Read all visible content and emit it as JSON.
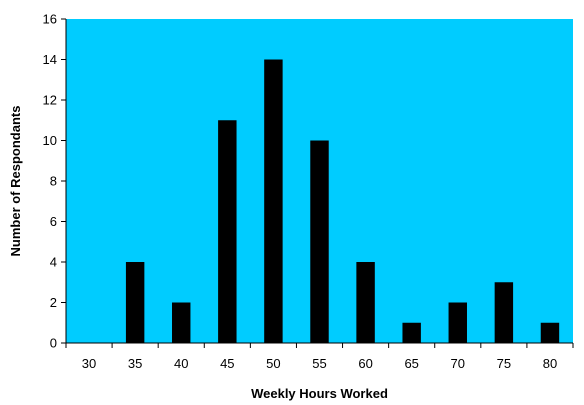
{
  "chart_data": {
    "type": "bar",
    "title": "",
    "xlabel": "Weekly Hours Worked",
    "ylabel": "Number of Respondants",
    "categories": [
      "30",
      "35",
      "40",
      "45",
      "50",
      "55",
      "60",
      "65",
      "70",
      "75",
      "80"
    ],
    "values": [
      0,
      4,
      2,
      11,
      14,
      10,
      4,
      1,
      2,
      3,
      1
    ],
    "ylim": [
      0,
      16
    ],
    "yticks": [
      "0",
      "2",
      "4",
      "6",
      "8",
      "10",
      "12",
      "14",
      "16"
    ],
    "grid": false,
    "legend": "none",
    "colors": {
      "plot_background": "#00CCFF",
      "bar": "#000000",
      "axis": "#000000"
    }
  }
}
